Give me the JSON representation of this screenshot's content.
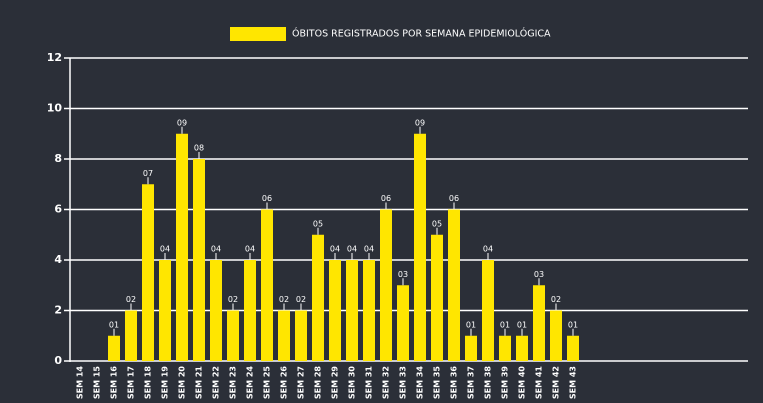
{
  "chart_data": {
    "type": "bar",
    "legend": "ÓBITOS REGISTRADOS POR SEMANA EPIDEMIOLÓGICA",
    "color": "#ffe600",
    "categories": [
      "SEM 14",
      "SEM 15",
      "SEM 16",
      "SEM 17",
      "SEM 18",
      "SEM 19",
      "SEM 20",
      "SEM 21",
      "SEM 22",
      "SEM 23",
      "SEM 24",
      "SEM 25",
      "SEM 26",
      "SEM 27",
      "SEM 28",
      "SEM 29",
      "SEM 30",
      "SEM 31",
      "SEM 32",
      "SEM 33",
      "SEM 34",
      "SEM 35",
      "SEM 36",
      "SEM 37",
      "SEM 38",
      "SEM 39",
      "SEM 40",
      "SEM 41",
      "SEM 42",
      "SEM 43"
    ],
    "values": [
      0,
      0,
      1,
      2,
      7,
      4,
      9,
      8,
      4,
      2,
      4,
      6,
      2,
      2,
      5,
      4,
      4,
      4,
      6,
      3,
      9,
      5,
      6,
      1,
      4,
      1,
      1,
      3,
      2,
      1
    ],
    "value_labels": [
      null,
      null,
      "01",
      "02",
      "07",
      "04",
      "09",
      "08",
      "04",
      "02",
      "04",
      "06",
      "02",
      "02",
      "05",
      "04",
      "04",
      "04",
      "06",
      "03",
      "09",
      "05",
      "06",
      "01",
      "04",
      "01",
      "01",
      "03",
      "02",
      "01"
    ],
    "ylim": [
      0,
      12
    ],
    "yticks": [
      0,
      2,
      4,
      6,
      8,
      10,
      12
    ],
    "grid": true
  }
}
